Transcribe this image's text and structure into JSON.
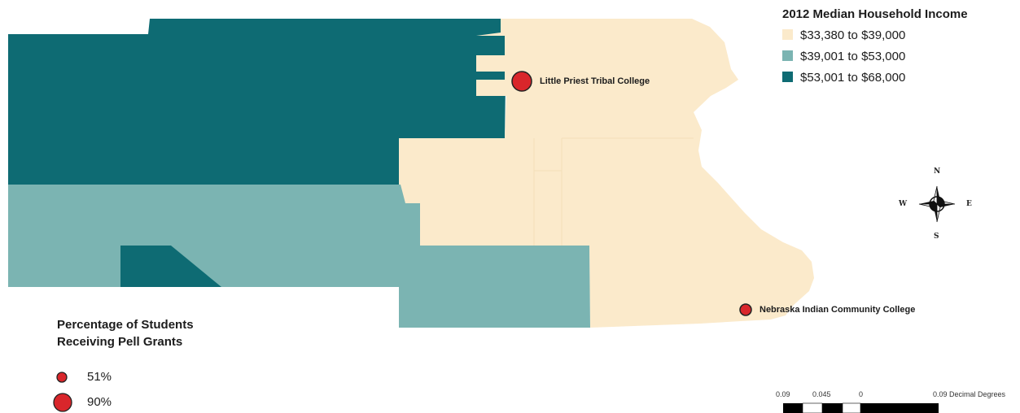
{
  "income_legend": {
    "title": "2012  Median Household Income",
    "items": [
      {
        "label": "$33,380 to $39,000",
        "color": "#fbeacb"
      },
      {
        "label": "$39,001 to $53,000",
        "color": "#7bb4b2"
      },
      {
        "label": "$53,001 to $68,000",
        "color": "#0e6b73"
      }
    ]
  },
  "pell_legend": {
    "title_line1": "Percentage of Students",
    "title_line2": "Receiving Pell Grants",
    "items": [
      {
        "label": "51%",
        "percent": 51
      },
      {
        "label": "90%",
        "percent": 90
      }
    ],
    "marker_color": "#d9262b"
  },
  "colleges": [
    {
      "name": "Little Priest Tribal College",
      "pell_percent": 90
    },
    {
      "name": "Nebraska Indian Community College",
      "pell_percent": 51
    }
  ],
  "compass": {
    "n": "N",
    "s": "S",
    "e": "E",
    "w": "W"
  },
  "scale_bar": {
    "ticks": [
      "0.09",
      "0.045",
      "0",
      "0.09 Decimal Degrees"
    ]
  }
}
